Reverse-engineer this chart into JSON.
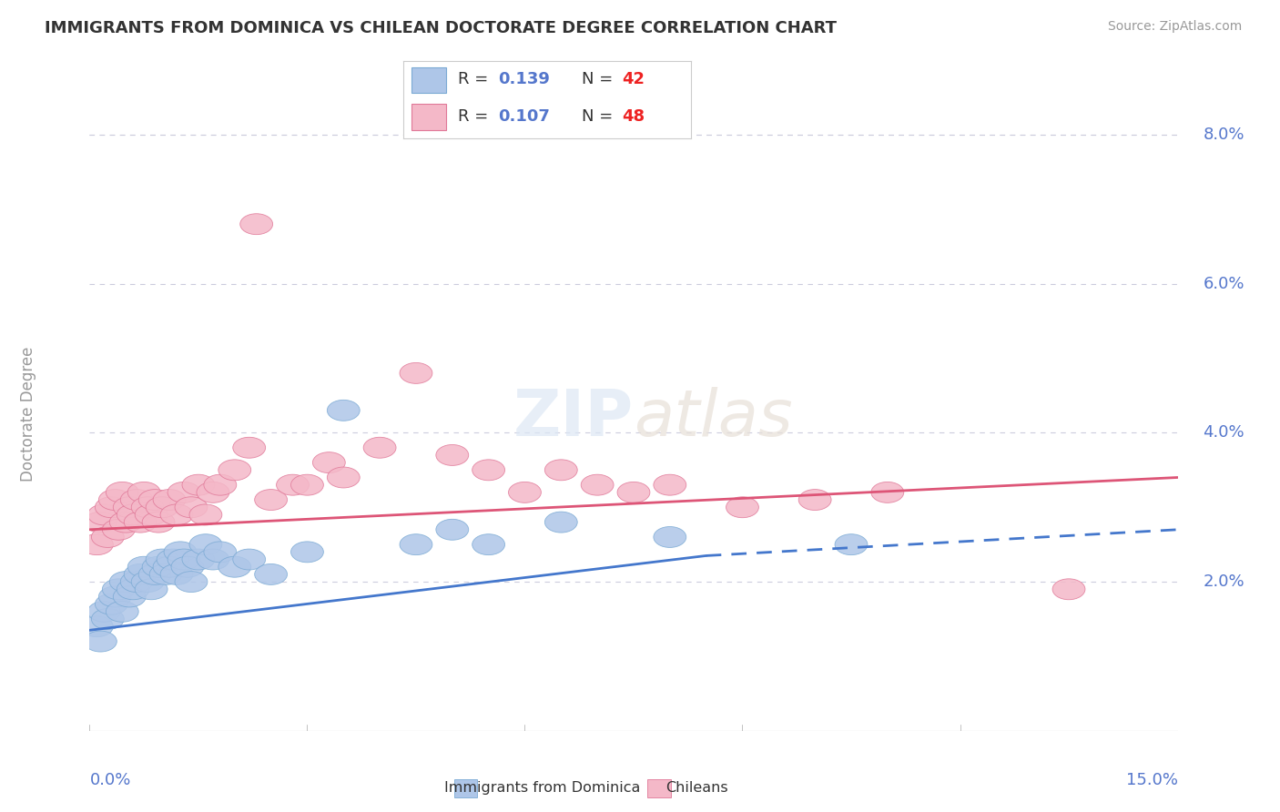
{
  "title": "IMMIGRANTS FROM DOMINICA VS CHILEAN DOCTORATE DEGREE CORRELATION CHART",
  "source": "Source: ZipAtlas.com",
  "ylabel": "Doctorate Degree",
  "xlim": [
    0.0,
    15.0
  ],
  "ylim": [
    0.0,
    8.5
  ],
  "color_blue": "#aec6e8",
  "color_blue_edge": "#7baad4",
  "color_pink": "#f4b8c8",
  "color_pink_edge": "#e07898",
  "color_blue_line": "#4477cc",
  "color_pink_line": "#dd5577",
  "color_grid": "#ccccdd",
  "color_ytick": "#5577cc",
  "color_title": "#333333",
  "color_source": "#999999",
  "color_ylabel": "#999999",
  "watermark": "ZIPatlas",
  "legend_r1": "0.139",
  "legend_n1": "42",
  "legend_r2": "0.107",
  "legend_n2": "48",
  "blue_x": [
    0.1,
    0.15,
    0.2,
    0.25,
    0.3,
    0.35,
    0.4,
    0.45,
    0.5,
    0.55,
    0.6,
    0.65,
    0.7,
    0.75,
    0.8,
    0.85,
    0.9,
    0.95,
    1.0,
    1.05,
    1.1,
    1.15,
    1.2,
    1.25,
    1.3,
    1.35,
    1.4,
    1.5,
    1.6,
    1.7,
    1.8,
    2.0,
    2.2,
    2.5,
    3.0,
    3.5,
    4.5,
    5.0,
    5.5,
    6.5,
    8.0,
    10.5
  ],
  "blue_y": [
    1.4,
    1.2,
    1.6,
    1.5,
    1.7,
    1.8,
    1.9,
    1.6,
    2.0,
    1.8,
    1.9,
    2.0,
    2.1,
    2.2,
    2.0,
    1.9,
    2.1,
    2.2,
    2.3,
    2.1,
    2.2,
    2.3,
    2.1,
    2.4,
    2.3,
    2.2,
    2.0,
    2.3,
    2.5,
    2.3,
    2.4,
    2.2,
    2.3,
    2.1,
    2.4,
    4.3,
    2.5,
    2.7,
    2.5,
    2.8,
    2.6,
    2.5
  ],
  "pink_x": [
    0.1,
    0.15,
    0.2,
    0.25,
    0.3,
    0.35,
    0.4,
    0.45,
    0.5,
    0.55,
    0.6,
    0.65,
    0.7,
    0.75,
    0.8,
    0.85,
    0.9,
    0.95,
    1.0,
    1.1,
    1.2,
    1.3,
    1.4,
    1.5,
    1.6,
    1.7,
    1.8,
    2.0,
    2.2,
    2.5,
    2.8,
    3.0,
    3.3,
    3.5,
    4.0,
    4.5,
    5.0,
    5.5,
    6.0,
    6.5,
    7.0,
    7.5,
    8.0,
    9.0,
    10.0,
    11.0,
    13.5,
    2.3
  ],
  "pink_y": [
    2.5,
    2.8,
    2.9,
    2.6,
    3.0,
    3.1,
    2.7,
    3.2,
    2.8,
    3.0,
    2.9,
    3.1,
    2.8,
    3.2,
    3.0,
    2.9,
    3.1,
    2.8,
    3.0,
    3.1,
    2.9,
    3.2,
    3.0,
    3.3,
    2.9,
    3.2,
    3.3,
    3.5,
    3.8,
    3.1,
    3.3,
    3.3,
    3.6,
    3.4,
    3.8,
    4.8,
    3.7,
    3.5,
    3.2,
    3.5,
    3.3,
    3.2,
    3.3,
    3.0,
    3.1,
    3.2,
    1.9,
    6.8
  ],
  "blue_line_x0": 0.0,
  "blue_line_x_solid_end": 8.5,
  "blue_line_x1": 15.0,
  "blue_line_y0": 1.35,
  "blue_line_y_solid_end": 2.35,
  "blue_line_y1": 2.7,
  "pink_line_x0": 0.0,
  "pink_line_x1": 15.0,
  "pink_line_y0": 2.7,
  "pink_line_y1": 3.4
}
